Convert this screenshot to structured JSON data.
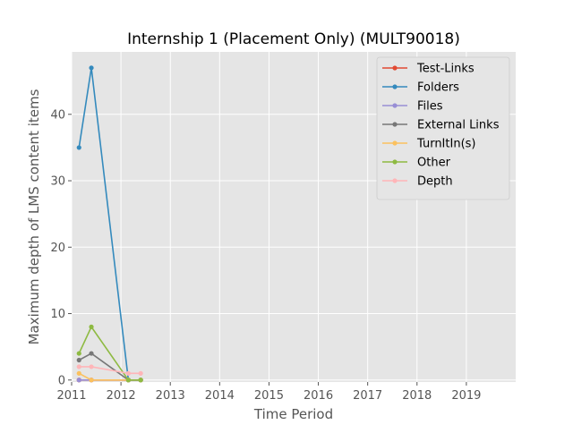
{
  "chart_data": {
    "type": "line",
    "title": "Internship 1 (Placement Only) (MULT90018)",
    "xlabel": "Time Period",
    "ylabel": "Maximum depth of LMS content items",
    "xlim": [
      2011,
      2020
    ],
    "ylim": [
      -0.3,
      49.4
    ],
    "xticks": [
      2011,
      2012,
      2013,
      2014,
      2015,
      2016,
      2017,
      2018,
      2019
    ],
    "xtick_labels": [
      "2011",
      "2012",
      "2013",
      "2014",
      "2015",
      "2016",
      "2017",
      "2018",
      "2019"
    ],
    "yticks": [
      0,
      10,
      20,
      30,
      40
    ],
    "ytick_labels": [
      "0",
      "10",
      "20",
      "30",
      "40"
    ],
    "grid": true,
    "legend_position": "top-right",
    "x": [
      2011.15,
      2011.4,
      2012.15,
      2012.4
    ],
    "series": [
      {
        "name": "Test-Links",
        "color": "#e24a33",
        "values": [
          0,
          0,
          0,
          0
        ]
      },
      {
        "name": "Folders",
        "color": "#348abd",
        "values": [
          35,
          47,
          0,
          0
        ]
      },
      {
        "name": "Files",
        "color": "#988ed5",
        "values": [
          0,
          0,
          0,
          0
        ]
      },
      {
        "name": "External Links",
        "color": "#777777",
        "values": [
          3,
          4,
          0,
          0
        ]
      },
      {
        "name": "TurnItIn(s)",
        "color": "#fbc15e",
        "values": [
          1,
          0,
          0,
          0
        ]
      },
      {
        "name": "Other",
        "color": "#8eba42",
        "values": [
          4,
          8,
          0,
          0
        ]
      },
      {
        "name": "Depth",
        "color": "#ffb5b8",
        "values": [
          2,
          2,
          1,
          1
        ]
      }
    ]
  }
}
